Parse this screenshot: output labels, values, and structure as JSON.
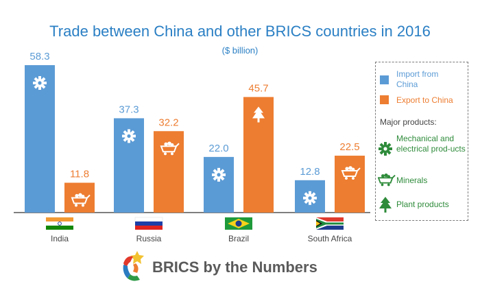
{
  "chart_data": {
    "type": "bar",
    "title": "Trade between China and other BRICS countries in 2016",
    "subtitle": "($ billion)",
    "categories": [
      "India",
      "Russia",
      "Brazil",
      "South Africa"
    ],
    "series": [
      {
        "name": "Import from China",
        "color": "#5b9bd5",
        "values": [
          58.3,
          37.3,
          22.0,
          12.8
        ],
        "labels": [
          "58.3",
          "37.3",
          "22.0",
          "12.8"
        ],
        "major_product": [
          "mechanical-electrical",
          "mechanical-electrical",
          "mechanical-electrical",
          "mechanical-electrical"
        ]
      },
      {
        "name": "Export to China",
        "color": "#ed7d31",
        "values": [
          11.8,
          32.2,
          45.7,
          22.5
        ],
        "labels": [
          "11.8",
          "32.2",
          "45.7",
          "22.5"
        ],
        "major_product": [
          "minerals",
          "minerals",
          "plant",
          "minerals"
        ]
      }
    ],
    "ylim": [
      0,
      60
    ],
    "grid": false,
    "legend_position": "right"
  },
  "legend": {
    "import_label": "Import from China",
    "export_label": "Export to China",
    "products_heading": "Major products:",
    "products": [
      {
        "icon": "gear-icon",
        "label": "Mechanical and electrical prod-ucts"
      },
      {
        "icon": "minecart-icon",
        "label": "Minerals"
      },
      {
        "icon": "tree-icon",
        "label": "Plant products"
      }
    ]
  },
  "flags": [
    "india-flag",
    "russia-flag",
    "brazil-flag",
    "south-africa-flag"
  ],
  "footer": {
    "text": "BRICS by the Numbers"
  },
  "colors": {
    "title": "#2a7fc4",
    "import": "#5b9bd5",
    "export": "#ed7d31",
    "legend_green": "#2e8b3a",
    "axis": "#555555"
  }
}
